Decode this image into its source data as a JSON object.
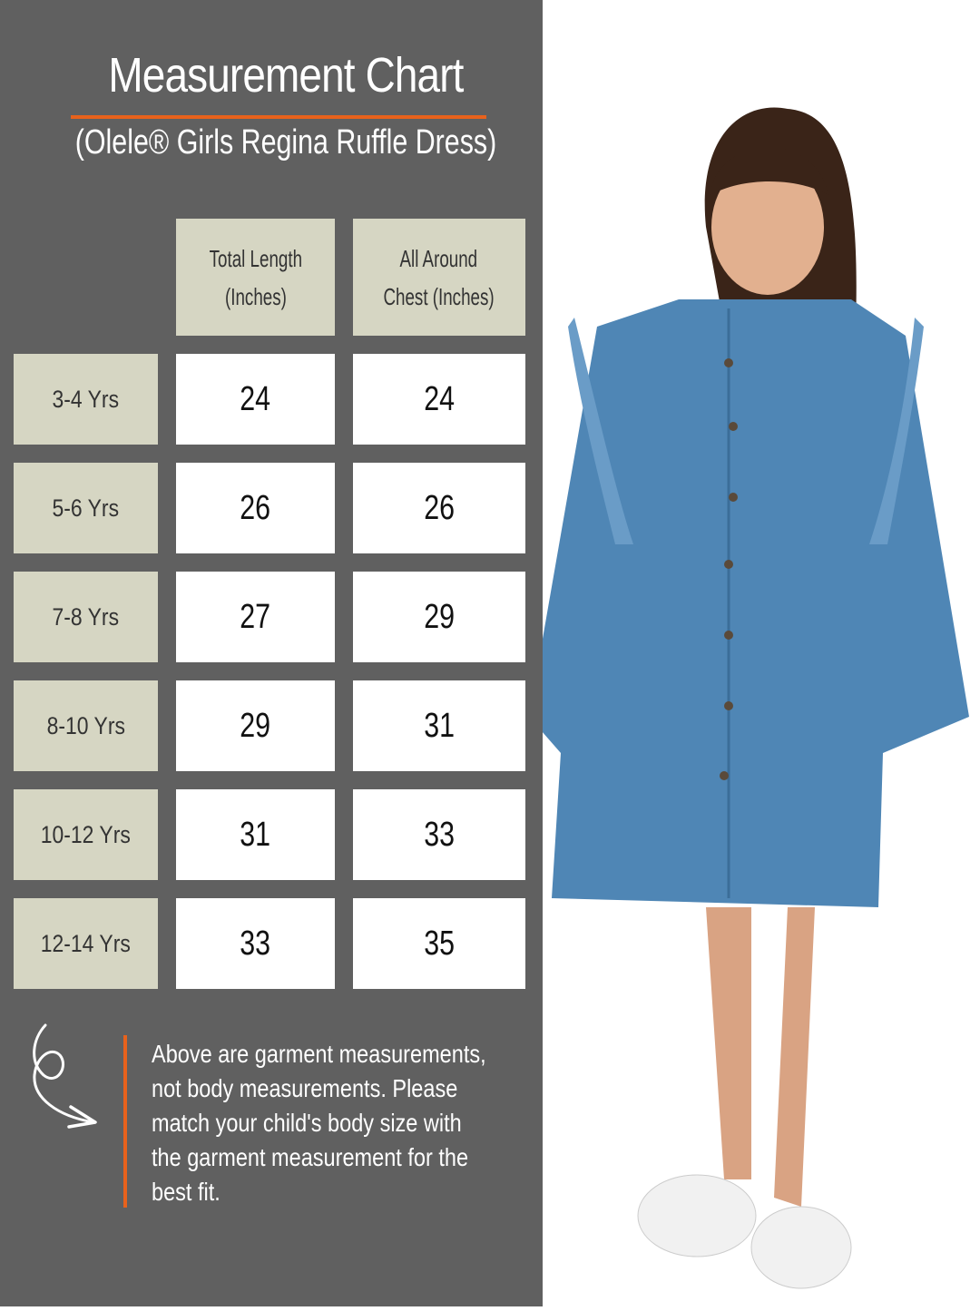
{
  "title": "Measurement Chart",
  "subtitle": "(Olele® Girls Regina Ruffle Dress)",
  "table": {
    "headers": [
      "Total Length (Inches)",
      "All Around Chest (Inches)"
    ],
    "header_lines": [
      [
        "Total Length",
        "(Inches)"
      ],
      [
        "All Around",
        "Chest (Inches)"
      ]
    ],
    "rows": [
      {
        "size": "3-4 Yrs",
        "length": "24",
        "chest": "24"
      },
      {
        "size": "5-6 Yrs",
        "length": "26",
        "chest": "26"
      },
      {
        "size": "7-8 Yrs",
        "length": "27",
        "chest": "29"
      },
      {
        "size": "8-10 Yrs",
        "length": "29",
        "chest": "31"
      },
      {
        "size": "10-12 Yrs",
        "length": "31",
        "chest": "33"
      },
      {
        "size": "12-14 Yrs",
        "length": "33",
        "chest": "35"
      }
    ]
  },
  "note": {
    "lines": [
      "Above are garment measurements,",
      "not body measurements. Please",
      "match your child's body size with",
      "the garment measurement for the",
      "best fit."
    ],
    "icon": "curly-arrow-icon"
  },
  "colors": {
    "panel": "#606060",
    "accent": "#e8621c",
    "label_bg": "#d6d6c3",
    "dress": "#4f86b5"
  }
}
